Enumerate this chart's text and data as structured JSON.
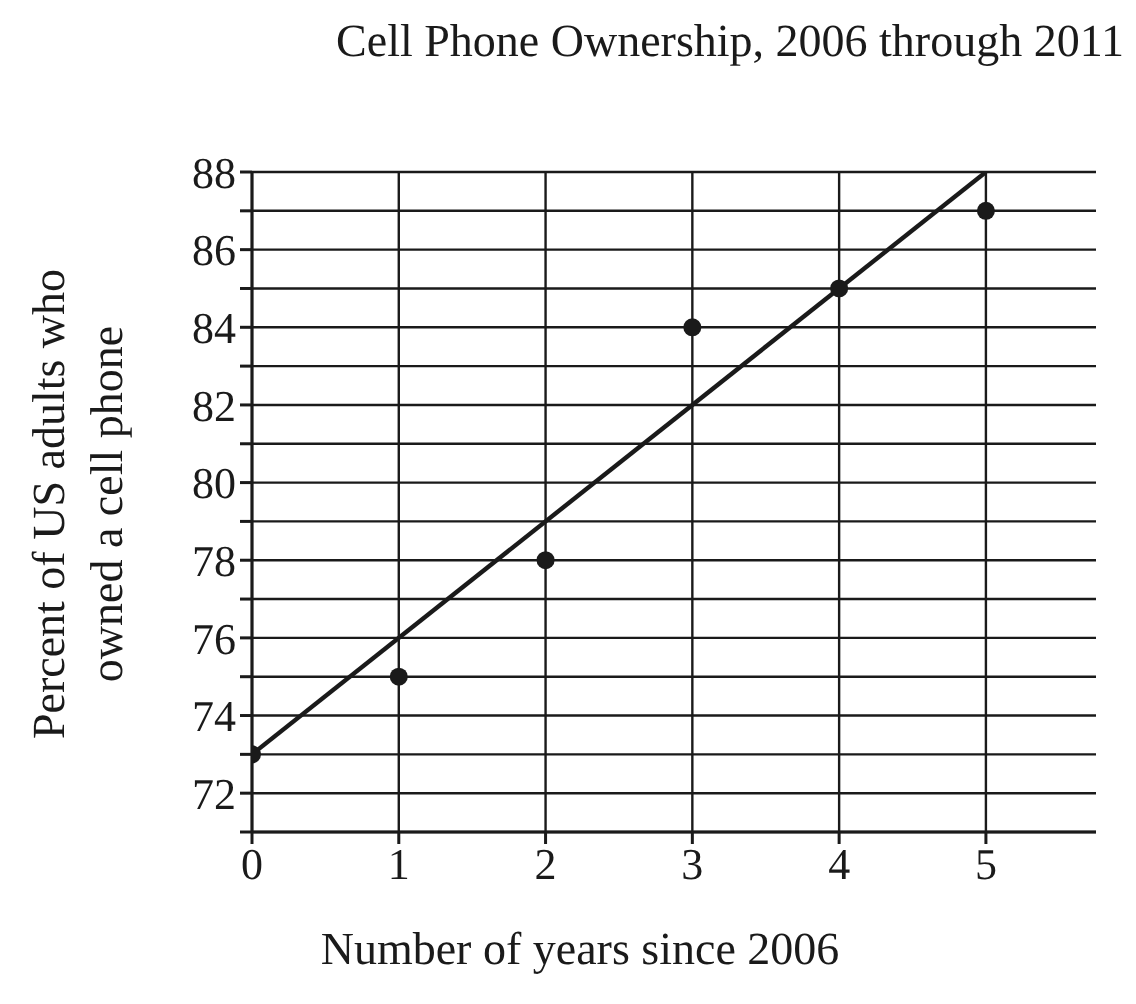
{
  "chart_data": {
    "type": "scatter",
    "title": "Cell Phone Ownership, 2006 through 2011",
    "xlabel": "Number of years since 2006",
    "ylabel": "Percent of US adults who owned a cell phone",
    "marker": "circle",
    "series": [
      {
        "color": "#1a1a1a",
        "x": [
          0,
          1,
          2,
          3,
          4,
          5
        ],
        "values": [
          73,
          75,
          78,
          84,
          85,
          87
        ]
      },
      {
        "type": "line",
        "color": "#1a1a1a",
        "x": [
          0,
          5
        ],
        "values": [
          73,
          88
        ],
        "marker": "none",
        "line_style": "solid"
      }
    ],
    "xlim": [
      0,
      5.75
    ],
    "xticks": [
      0,
      1,
      2,
      3,
      4,
      5
    ],
    "ylim": [
      71,
      88
    ],
    "yticks": [
      {
        "value": 71,
        "label": null
      },
      72,
      {
        "value": 73,
        "label": null
      },
      74,
      {
        "value": 75,
        "label": null
      },
      76,
      {
        "value": 77,
        "label": null
      },
      78,
      {
        "value": 79,
        "label": null
      },
      80,
      {
        "value": 81,
        "label": null
      },
      82,
      {
        "value": 83,
        "label": null
      },
      84,
      {
        "value": 85,
        "label": null
      },
      86,
      {
        "value": 87,
        "label": null
      },
      88
    ],
    "grid": true
  }
}
